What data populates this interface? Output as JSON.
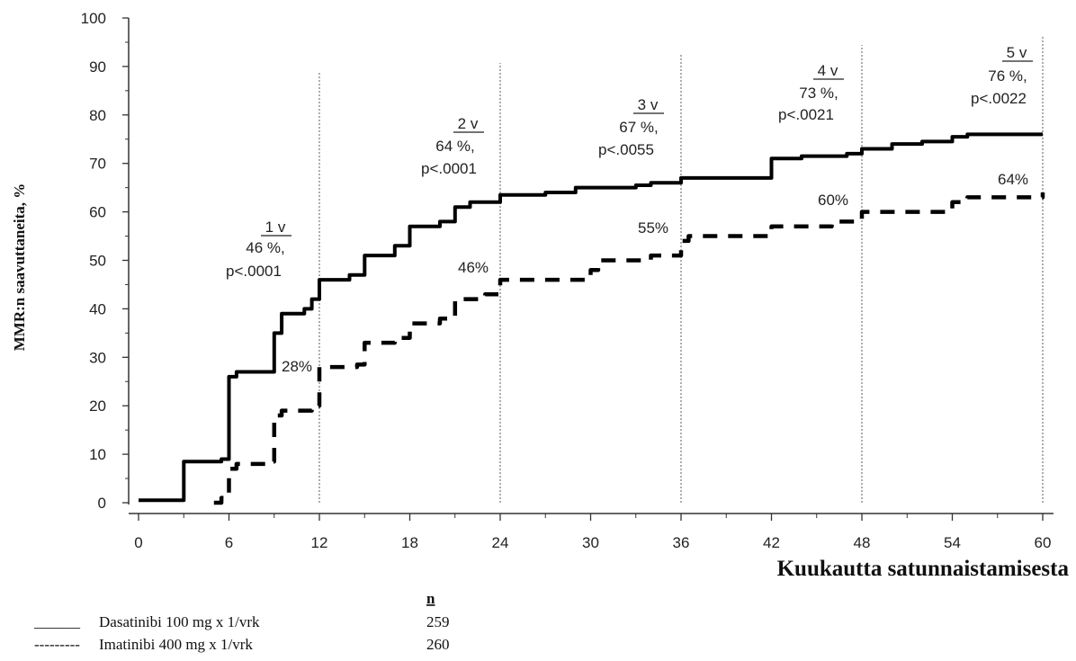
{
  "chart_data": {
    "type": "line",
    "title": "",
    "xlabel": "Kuukautta satunnaistamisesta",
    "ylabel": "MMR:n saavuttaneita, %",
    "xlim": [
      0,
      60
    ],
    "ylim": [
      0,
      100
    ],
    "x_ticks": [
      0,
      6,
      12,
      18,
      24,
      30,
      36,
      42,
      48,
      54,
      60
    ],
    "x_tick_labels": [
      "0",
      "6",
      "12",
      "18",
      "24",
      "30",
      "36",
      "42",
      "48",
      "54",
      "60"
    ],
    "y_ticks": [
      0,
      10,
      20,
      30,
      40,
      50,
      60,
      70,
      80,
      90,
      100
    ],
    "y_tick_labels": [
      "0",
      "10",
      "20",
      "30",
      "40",
      "50",
      "60",
      "70",
      "80",
      "90",
      "100"
    ],
    "grid": false,
    "vertical_reference_lines_x": [
      12,
      24,
      36,
      48,
      60
    ],
    "series": [
      {
        "name": "Dasatinibi 100 mg x 1/vrk",
        "style": "solid",
        "color": "#000000",
        "points": [
          [
            0,
            0.5
          ],
          [
            2.5,
            0.5
          ],
          [
            3,
            8.5
          ],
          [
            5.5,
            9
          ],
          [
            6,
            26
          ],
          [
            6.5,
            27
          ],
          [
            8.5,
            27
          ],
          [
            9,
            35
          ],
          [
            9.5,
            39
          ],
          [
            11,
            40
          ],
          [
            11.5,
            42
          ],
          [
            12,
            46
          ],
          [
            14,
            47
          ],
          [
            15,
            51
          ],
          [
            17,
            53
          ],
          [
            18,
            57
          ],
          [
            20,
            58
          ],
          [
            21,
            61
          ],
          [
            22,
            62
          ],
          [
            24,
            63.5
          ],
          [
            27,
            64
          ],
          [
            29,
            65
          ],
          [
            33,
            65.5
          ],
          [
            34,
            66
          ],
          [
            36,
            67
          ],
          [
            40,
            67
          ],
          [
            42,
            71
          ],
          [
            44,
            71.5
          ],
          [
            47,
            72
          ],
          [
            48,
            73
          ],
          [
            50,
            74
          ],
          [
            52,
            74.5
          ],
          [
            54,
            75.5
          ],
          [
            55,
            76
          ],
          [
            60,
            76
          ]
        ]
      },
      {
        "name": "Imatinibi 400 mg x 1/vrk",
        "style": "dashed",
        "color": "#000000",
        "points": [
          [
            5,
            0
          ],
          [
            5.5,
            1
          ],
          [
            6,
            7
          ],
          [
            6.5,
            8
          ],
          [
            8.5,
            8.5
          ],
          [
            9,
            18
          ],
          [
            9.5,
            19
          ],
          [
            11.5,
            20
          ],
          [
            12,
            28
          ],
          [
            14.5,
            28.5
          ],
          [
            15,
            33
          ],
          [
            17,
            34
          ],
          [
            18,
            37
          ],
          [
            20,
            38
          ],
          [
            21,
            42
          ],
          [
            23,
            43
          ],
          [
            24,
            46
          ],
          [
            30,
            48
          ],
          [
            30.5,
            50
          ],
          [
            34,
            51
          ],
          [
            36,
            54
          ],
          [
            36.5,
            55
          ],
          [
            42,
            57
          ],
          [
            46,
            58
          ],
          [
            48,
            60
          ],
          [
            54,
            62
          ],
          [
            55,
            63
          ],
          [
            60,
            64
          ]
        ]
      }
    ],
    "timepoint_annotations": [
      {
        "x": 12,
        "year": "1 v",
        "dasatinib": "46 %,",
        "p": "p<.0001",
        "imatinib": "28%"
      },
      {
        "x": 24,
        "year": "2 v",
        "dasatinib": "64 %,",
        "p": "p<.0001",
        "imatinib": "46%"
      },
      {
        "x": 36,
        "year": "3 v",
        "dasatinib": "67 %,",
        "p": "p<.0055",
        "imatinib": "55%"
      },
      {
        "x": 48,
        "year": "4 v",
        "dasatinib": "73 %,",
        "p": "p<.0021",
        "imatinib": "60%"
      },
      {
        "x": 60,
        "year": "5 v",
        "dasatinib": "76 %,",
        "p": "p<.0022",
        "imatinib": "64%"
      }
    ],
    "legend": {
      "n_header": "n",
      "entries": [
        {
          "line": "______",
          "label": "Dasatinibi 100 mg x 1/vrk",
          "n": "259"
        },
        {
          "line": "---------",
          "label": "Imatinibi 400 mg x 1/vrk",
          "n": "260"
        }
      ]
    }
  }
}
